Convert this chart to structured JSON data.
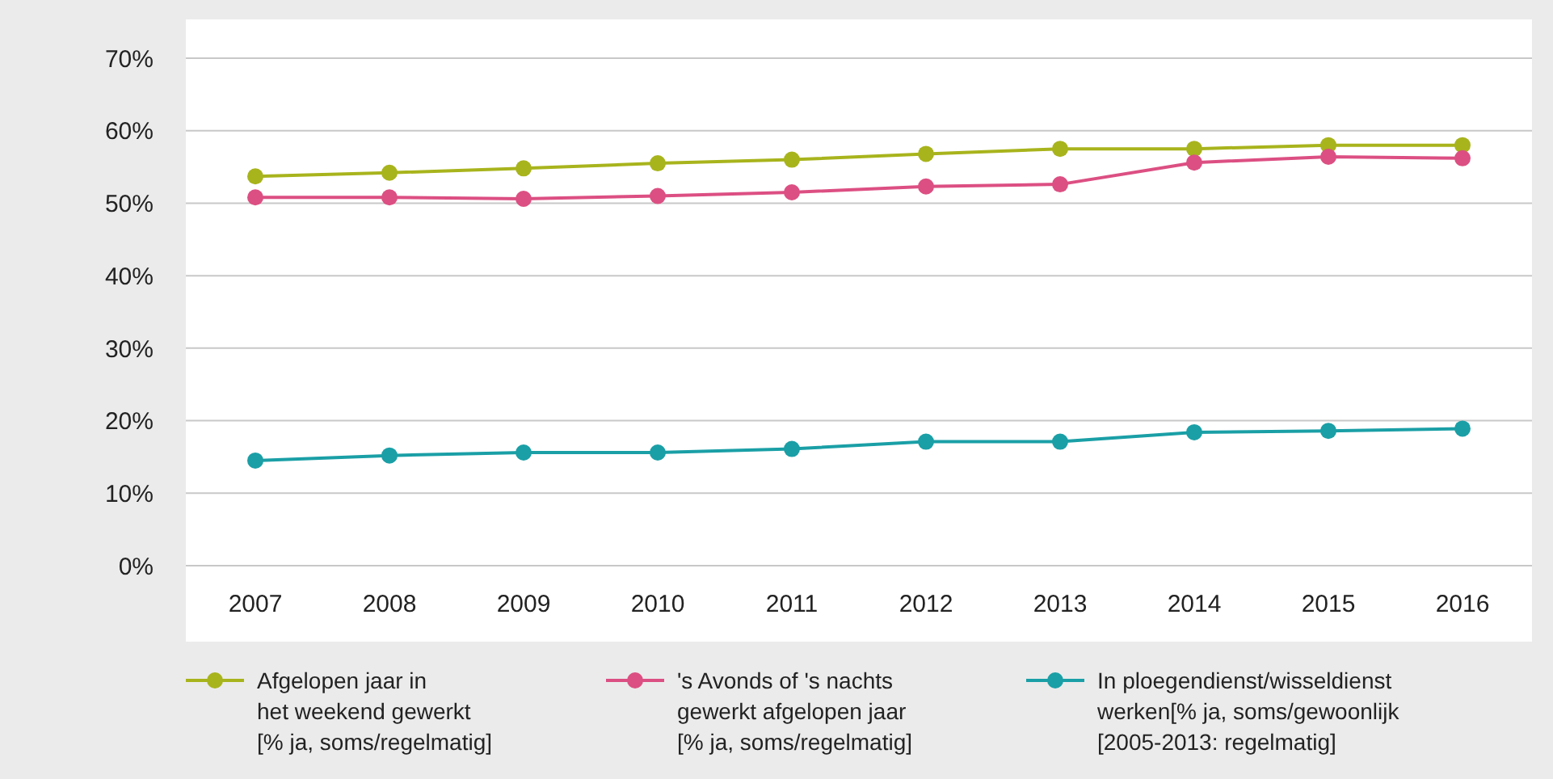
{
  "chart_data": {
    "type": "line",
    "categories": [
      "2007",
      "2008",
      "2009",
      "2010",
      "2011",
      "2012",
      "2013",
      "2014",
      "2015",
      "2016"
    ],
    "series": [
      {
        "name": "Afgelopen jaar in\nhet weekend gewerkt\n[% ja, soms/regelmatig]",
        "color": "#a8b41c",
        "values": [
          53.7,
          54.2,
          54.8,
          55.5,
          56,
          56.8,
          57.5,
          57.5,
          58,
          58
        ]
      },
      {
        "name": "'s Avonds of 's nachts\ngewerkt afgelopen jaar\n[% ja, soms/regelmatig]",
        "color": "#dc4f82",
        "values": [
          50.8,
          50.8,
          50.6,
          51,
          51.5,
          52.3,
          52.6,
          55.6,
          56.4,
          56.2
        ]
      },
      {
        "name": "In ploegendienst/wisseldienst\nwerken[% ja, soms/gewoonlijk\n[2005-2013: regelmatig]",
        "color": "#1a9fa6",
        "values": [
          14.5,
          15.2,
          15.6,
          15.6,
          16.1,
          17.1,
          17.1,
          18.4,
          18.6,
          18.9
        ]
      }
    ],
    "ylim": [
      0,
      70
    ],
    "yticks": [
      {
        "value": 0,
        "label": "0%"
      },
      {
        "value": 10,
        "label": "10%"
      },
      {
        "value": 20,
        "label": "20%"
      },
      {
        "value": 30,
        "label": "30%"
      },
      {
        "value": 40,
        "label": "40%"
      },
      {
        "value": 50,
        "label": "50%"
      },
      {
        "value": 60,
        "label": "60%"
      },
      {
        "value": 70,
        "label": "70%"
      }
    ],
    "grid": "y",
    "legend": "bottom",
    "marker": "circle",
    "line_style": "solid"
  }
}
